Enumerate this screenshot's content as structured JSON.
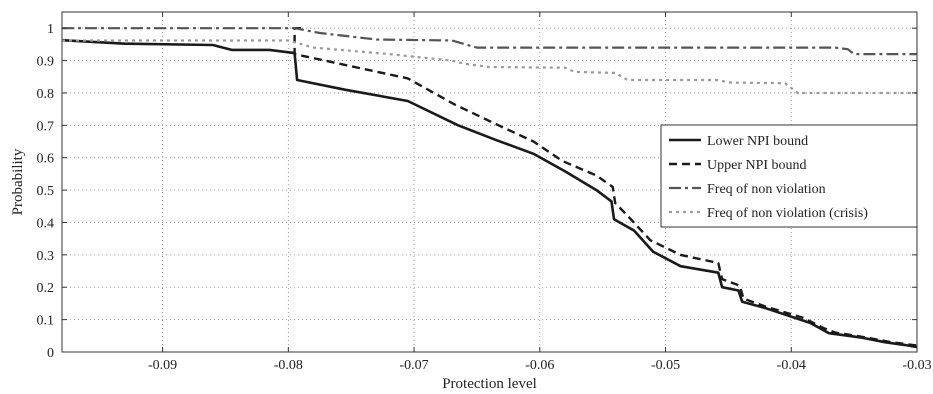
{
  "chart_data": {
    "type": "line",
    "xlabel": "Protection level",
    "ylabel": "Probability",
    "xlim": [
      -0.098,
      -0.03
    ],
    "ylim": [
      0,
      1.05
    ],
    "xticks": [
      -0.09,
      -0.08,
      -0.07,
      -0.06,
      -0.05,
      -0.04,
      -0.03
    ],
    "xtick_labels": [
      "-0.09",
      "-0.08",
      "-0.07",
      "-0.06",
      "-0.05",
      "-0.04",
      "-0.03"
    ],
    "yticks": [
      0,
      0.1,
      0.2,
      0.3,
      0.4,
      0.5,
      0.6,
      0.7,
      0.8,
      0.9,
      1
    ],
    "ytick_labels": [
      "0",
      "0.1",
      "0.2",
      "0.3",
      "0.4",
      "0.5",
      "0.6",
      "0.7",
      "0.8",
      "0.9",
      "1"
    ],
    "grid": "dotted",
    "legend_position": "right",
    "series": [
      {
        "name": "Lower NPI bound",
        "color": "#1a1a1a",
        "dash": "solid",
        "width": 2.6,
        "points": [
          [
            -0.098,
            0.963
          ],
          [
            -0.093,
            0.952
          ],
          [
            -0.086,
            0.948
          ],
          [
            -0.0845,
            0.933
          ],
          [
            -0.0815,
            0.933
          ],
          [
            -0.0795,
            0.923
          ],
          [
            -0.0793,
            0.84
          ],
          [
            -0.0755,
            0.81
          ],
          [
            -0.0705,
            0.775
          ],
          [
            -0.0665,
            0.7
          ],
          [
            -0.0635,
            0.655
          ],
          [
            -0.0605,
            0.612
          ],
          [
            -0.058,
            0.558
          ],
          [
            -0.0555,
            0.5
          ],
          [
            -0.0543,
            0.465
          ],
          [
            -0.0541,
            0.41
          ],
          [
            -0.0525,
            0.375
          ],
          [
            -0.051,
            0.31
          ],
          [
            -0.0488,
            0.265
          ],
          [
            -0.0458,
            0.245
          ],
          [
            -0.0455,
            0.2
          ],
          [
            -0.0442,
            0.19
          ],
          [
            -0.0439,
            0.155
          ],
          [
            -0.042,
            0.135
          ],
          [
            -0.0385,
            0.09
          ],
          [
            -0.037,
            0.058
          ],
          [
            -0.0345,
            0.045
          ],
          [
            -0.0325,
            0.03
          ],
          [
            -0.031,
            0.022
          ],
          [
            -0.03,
            0.015
          ]
        ]
      },
      {
        "name": "Upper NPI bound",
        "color": "#1a1a1a",
        "dash": "8,5",
        "width": 2.4,
        "points": [
          [
            -0.079,
            1.0
          ],
          [
            -0.0795,
            1.0
          ],
          [
            -0.0795,
            0.92
          ],
          [
            -0.0705,
            0.845
          ],
          [
            -0.0668,
            0.765
          ],
          [
            -0.063,
            0.695
          ],
          [
            -0.0605,
            0.65
          ],
          [
            -0.0582,
            0.59
          ],
          [
            -0.0555,
            0.545
          ],
          [
            -0.0542,
            0.51
          ],
          [
            -0.054,
            0.46
          ],
          [
            -0.053,
            0.42
          ],
          [
            -0.0512,
            0.345
          ],
          [
            -0.0488,
            0.3
          ],
          [
            -0.0458,
            0.275
          ],
          [
            -0.0455,
            0.225
          ],
          [
            -0.0441,
            0.205
          ],
          [
            -0.0438,
            0.165
          ],
          [
            -0.042,
            0.14
          ],
          [
            -0.039,
            0.105
          ],
          [
            -0.0375,
            0.075
          ],
          [
            -0.0365,
            0.06
          ],
          [
            -0.0345,
            0.048
          ],
          [
            -0.032,
            0.03
          ],
          [
            -0.03,
            0.02
          ]
        ]
      },
      {
        "name": "Freq of non violation",
        "color": "#555555",
        "dash": "12,4,3,4",
        "width": 2.2,
        "points": [
          [
            -0.098,
            1.0
          ],
          [
            -0.0795,
            1.0
          ],
          [
            -0.0775,
            0.985
          ],
          [
            -0.073,
            0.965
          ],
          [
            -0.067,
            0.962
          ],
          [
            -0.065,
            0.94
          ],
          [
            -0.0365,
            0.94
          ],
          [
            -0.0355,
            0.935
          ],
          [
            -0.035,
            0.92
          ],
          [
            -0.03,
            0.92
          ]
        ]
      },
      {
        "name": "Freq of non violation (crisis)",
        "color": "#9a9a9a",
        "dash": "3,4",
        "width": 2.2,
        "points": [
          [
            -0.098,
            0.962
          ],
          [
            -0.08,
            0.962
          ],
          [
            -0.078,
            0.94
          ],
          [
            -0.072,
            0.92
          ],
          [
            -0.067,
            0.9
          ],
          [
            -0.066,
            0.89
          ],
          [
            -0.064,
            0.88
          ],
          [
            -0.058,
            0.878
          ],
          [
            -0.0572,
            0.865
          ],
          [
            -0.054,
            0.862
          ],
          [
            -0.053,
            0.84
          ],
          [
            -0.046,
            0.84
          ],
          [
            -0.0448,
            0.832
          ],
          [
            -0.0405,
            0.83
          ],
          [
            -0.0395,
            0.8
          ],
          [
            -0.03,
            0.8
          ]
        ]
      }
    ]
  }
}
